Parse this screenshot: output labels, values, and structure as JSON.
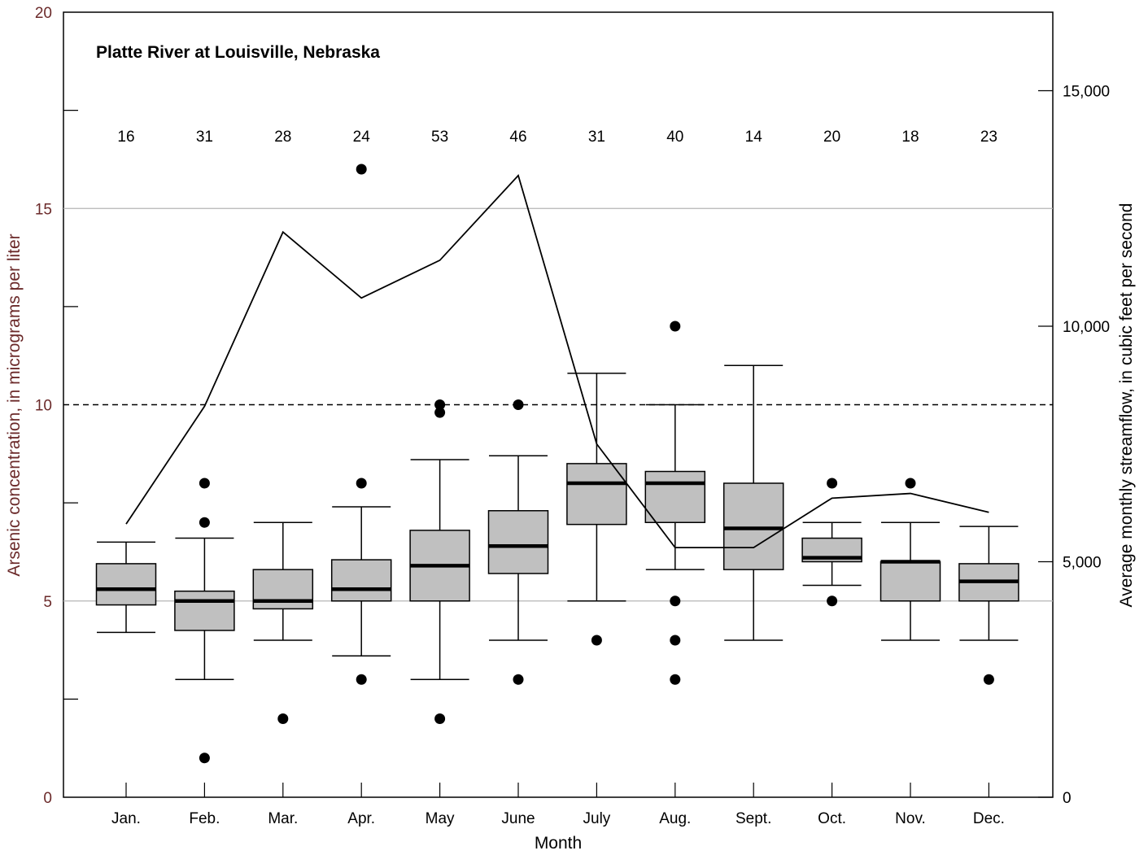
{
  "chart_data": {
    "type": "box",
    "title": "Platte River at Louisville, Nebraska",
    "xlabel": "Month",
    "ylabel_left": "Arsenic concentration, in micrograms per liter",
    "ylabel_right": "Average monthly streamflow, in cubic feet per second",
    "ylim_left": [
      0,
      20
    ],
    "yticks_left": [
      "0",
      "5",
      "10",
      "15",
      "20"
    ],
    "ylim_right": [
      0,
      16666.67
    ],
    "yticks_right": [
      "0",
      "5,000",
      "10,000",
      "15,000"
    ],
    "reference_line": 10,
    "gridlines_left": [
      5,
      15
    ],
    "categories": [
      "Jan.",
      "Feb.",
      "Mar.",
      "Apr.",
      "May",
      "June",
      "July",
      "Aug.",
      "Sept.",
      "Oct.",
      "Nov.",
      "Dec."
    ],
    "counts": [
      "16",
      "31",
      "28",
      "24",
      "53",
      "46",
      "31",
      "40",
      "14",
      "20",
      "18",
      "23"
    ],
    "boxes": [
      {
        "whisker_low": 4.2,
        "q1": 4.9,
        "median": 5.3,
        "q3": 5.95,
        "whisker_high": 6.5,
        "outliers": []
      },
      {
        "whisker_low": 3.0,
        "q1": 4.25,
        "median": 5.0,
        "q3": 5.25,
        "whisker_high": 6.6,
        "outliers": [
          8.0,
          7.0,
          1.0
        ]
      },
      {
        "whisker_low": 4.0,
        "q1": 4.8,
        "median": 5.0,
        "q3": 5.8,
        "whisker_high": 7.0,
        "outliers": [
          2.0
        ]
      },
      {
        "whisker_low": 3.6,
        "q1": 5.0,
        "median": 5.3,
        "q3": 6.05,
        "whisker_high": 7.4,
        "outliers": [
          16.0,
          8.0,
          3.0
        ]
      },
      {
        "whisker_low": 3.0,
        "q1": 5.0,
        "median": 5.9,
        "q3": 6.8,
        "whisker_high": 8.6,
        "outliers": [
          10.0,
          9.8,
          2.0
        ]
      },
      {
        "whisker_low": 4.0,
        "q1": 5.7,
        "median": 6.4,
        "q3": 7.3,
        "whisker_high": 8.7,
        "outliers": [
          10.0,
          3.0
        ]
      },
      {
        "whisker_low": 5.0,
        "q1": 6.95,
        "median": 8.0,
        "q3": 8.5,
        "whisker_high": 10.8,
        "outliers": [
          4.0
        ]
      },
      {
        "whisker_low": 5.8,
        "q1": 7.0,
        "median": 8.0,
        "q3": 8.3,
        "whisker_high": 10.0,
        "outliers": [
          12.0,
          5.0,
          4.0,
          3.0
        ]
      },
      {
        "whisker_low": 4.0,
        "q1": 5.8,
        "median": 6.85,
        "q3": 8.0,
        "whisker_high": 11.0,
        "outliers": []
      },
      {
        "whisker_low": 5.4,
        "q1": 6.0,
        "median": 6.1,
        "q3": 6.6,
        "whisker_high": 7.0,
        "outliers": [
          8.0,
          5.0
        ]
      },
      {
        "whisker_low": 4.0,
        "q1": 5.0,
        "median": 6.0,
        "q3": 6.0,
        "whisker_high": 7.0,
        "outliers": [
          8.0
        ]
      },
      {
        "whisker_low": 4.0,
        "q1": 5.0,
        "median": 5.5,
        "q3": 5.95,
        "whisker_high": 6.9,
        "outliers": [
          3.0
        ]
      }
    ],
    "streamflow": [
      5800,
      8300,
      12000,
      10600,
      11400,
      13200,
      7500,
      5300,
      5300,
      6350,
      6450,
      6050
    ]
  }
}
